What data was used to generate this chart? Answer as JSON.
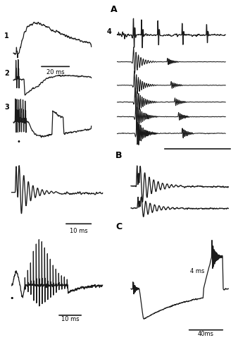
{
  "trace_color": "#1a1a1a",
  "figsize": [
    3.38,
    4.82
  ],
  "dpi": 100,
  "label_A": "A",
  "label_B": "B",
  "label_C": "C"
}
